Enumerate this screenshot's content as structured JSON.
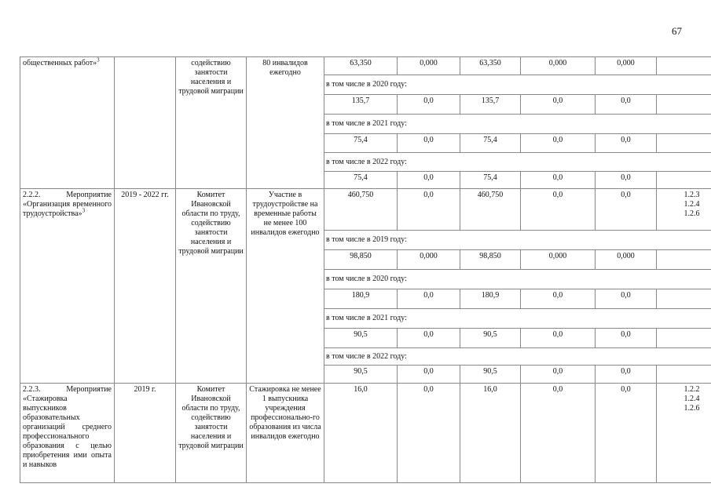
{
  "page_number": "67",
  "rows": [
    {
      "name": "общественных работ»",
      "footnote": "3",
      "period": "",
      "executor": "содействию занятости населения и трудовой миграции",
      "result": "80 инвалидов ежегодно",
      "indicators": "",
      "sub": [
        {
          "values": [
            "63,350",
            "0,000",
            "63,350",
            "0,000",
            "0,000"
          ],
          "h": 23
        },
        {
          "label": "в том числе в 2020 году:",
          "h": 25
        },
        {
          "values": [
            "135,7",
            "0,0",
            "135,7",
            "0,0",
            "0,0"
          ],
          "h": 25
        },
        {
          "label": "в том числе в 2021 году:",
          "h": 25
        },
        {
          "values": [
            "75,4",
            "0,0",
            "75,4",
            "0,0",
            "0,0"
          ],
          "h": 24
        },
        {
          "label": "в том числе в 2022 году:",
          "h": 24
        },
        {
          "values": [
            "75,4",
            "0,0",
            "75,4",
            "0,0",
            "0,0"
          ],
          "h": 22
        }
      ]
    },
    {
      "name": "2.2.2. Мероприятие «Организация временного трудоустройства»",
      "footnote": "3",
      "period": "2019 - 2022 гг.",
      "executor": "Комитет Ивановской области по труду, содействию занятости населения и трудовой миграции",
      "result": "Участие в трудоустройстве на временные работы не менее 100 инвалидов ежегодно",
      "indicators": "1.2.3\n1.2.4\n1.2.6",
      "sub": [
        {
          "values": [
            "460,750",
            "0,0",
            "460,750",
            "0,0",
            "0,0"
          ],
          "h": 53
        },
        {
          "label": "в том числе в 2019 году:",
          "h": 25
        },
        {
          "values": [
            "98,850",
            "0,000",
            "98,850",
            "0,000",
            "0,000"
          ],
          "h": 25
        },
        {
          "label": "в том числе в 2020 году:",
          "h": 25
        },
        {
          "values": [
            "180,9",
            "0,0",
            "180,9",
            "0,0",
            "0,0"
          ],
          "h": 25
        },
        {
          "label": "в том числе в 2021 году:",
          "h": 25
        },
        {
          "values": [
            "90,5",
            "0,0",
            "90,5",
            "0,0",
            "0,0"
          ],
          "h": 25
        },
        {
          "label": "в том числе в 2022 году:",
          "h": 22
        },
        {
          "values": [
            "90,5",
            "0,0",
            "90,5",
            "0,0",
            "0,0"
          ],
          "h": 23
        }
      ]
    },
    {
      "name": "2.2.3. Мероприятие «Стажировка выпускников образовательных организаций среднего профессионального образования с целью приобретения ими опыта и навыков",
      "footnote": "",
      "period": "2019 г.",
      "executor": "Комитет Ивановской области по труду, содействию занятости населения и трудовой миграции",
      "result": "Стажировка не менее 1 выпускника учреждения профессионально-го образования из числа инвалидов ежегодно",
      "indicators": "1.2.2\n1.2.4\n1.2.6",
      "sub": [
        {
          "values": [
            "16,0",
            "0,0",
            "16,0",
            "0,0",
            "0,0"
          ],
          "h": 127
        }
      ]
    }
  ]
}
